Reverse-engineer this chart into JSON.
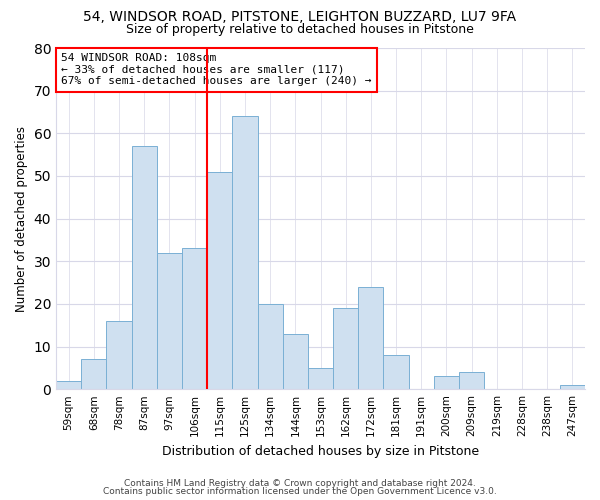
{
  "title": "54, WINDSOR ROAD, PITSTONE, LEIGHTON BUZZARD, LU7 9FA",
  "subtitle": "Size of property relative to detached houses in Pitstone",
  "xlabel": "Distribution of detached houses by size in Pitstone",
  "ylabel": "Number of detached properties",
  "bin_labels": [
    "59sqm",
    "68sqm",
    "78sqm",
    "87sqm",
    "97sqm",
    "106sqm",
    "115sqm",
    "125sqm",
    "134sqm",
    "144sqm",
    "153sqm",
    "162sqm",
    "172sqm",
    "181sqm",
    "191sqm",
    "200sqm",
    "209sqm",
    "219sqm",
    "228sqm",
    "238sqm",
    "247sqm"
  ],
  "bar_values": [
    2,
    7,
    16,
    57,
    32,
    33,
    51,
    64,
    20,
    13,
    5,
    19,
    24,
    8,
    0,
    3,
    4,
    0,
    0,
    0,
    1
  ],
  "bar_color": "#cfe0f0",
  "bar_edgecolor": "#7ab0d4",
  "vline_x": 5.5,
  "vline_color": "red",
  "ylim": [
    0,
    80
  ],
  "yticks": [
    0,
    10,
    20,
    30,
    40,
    50,
    60,
    70,
    80
  ],
  "annotation_line1": "54 WINDSOR ROAD: 108sqm",
  "annotation_line2": "← 33% of detached houses are smaller (117)",
  "annotation_line3": "67% of semi-detached houses are larger (240) →",
  "annotation_box_color": "white",
  "annotation_box_edgecolor": "red",
  "footnote1": "Contains HM Land Registry data © Crown copyright and database right 2024.",
  "footnote2": "Contains public sector information licensed under the Open Government Licence v3.0.",
  "background_color": "#ffffff",
  "grid_color": "#d8d8e8"
}
